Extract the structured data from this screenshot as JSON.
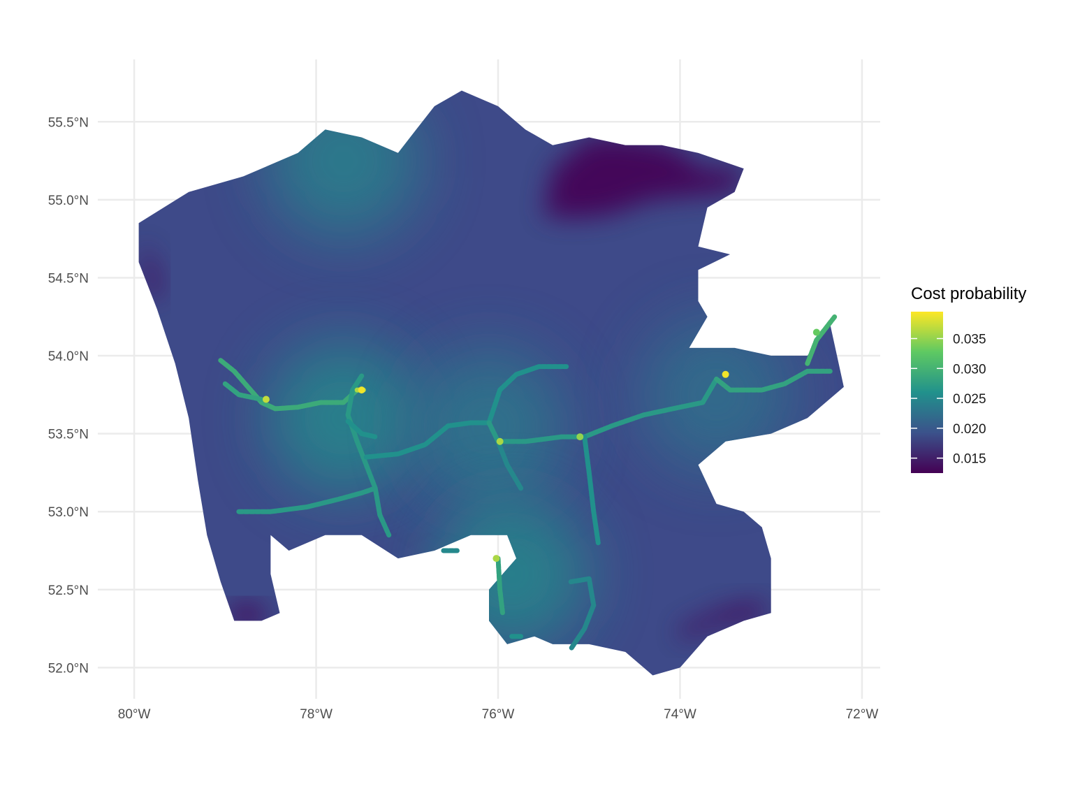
{
  "map": {
    "projection": "lon/lat equirectangular",
    "lon_range": [
      -80.4,
      -71.8
    ],
    "lat_range": [
      51.8,
      55.9
    ],
    "grid_lines": true,
    "x_ticks": [
      {
        "value": -80,
        "label": "80°W"
      },
      {
        "value": -78,
        "label": "78°W"
      },
      {
        "value": -76,
        "label": "76°W"
      },
      {
        "value": -74,
        "label": "74°W"
      },
      {
        "value": -72,
        "label": "72°W"
      }
    ],
    "y_ticks": [
      {
        "value": 55.5,
        "label": "55.5°N"
      },
      {
        "value": 55.0,
        "label": "55.0°N"
      },
      {
        "value": 54.5,
        "label": "54.5°N"
      },
      {
        "value": 54.0,
        "label": "54.0°N"
      },
      {
        "value": 53.5,
        "label": "53.5°N"
      },
      {
        "value": 53.0,
        "label": "53.0°N"
      },
      {
        "value": 52.5,
        "label": "52.5°N"
      },
      {
        "value": 52.0,
        "label": "52.0°N"
      }
    ],
    "fill_color_base": "#3e4a89",
    "gridline_color": "#ebebeb"
  },
  "legend": {
    "title": "Cost probability",
    "placement": "right",
    "range": [
      0.0125,
      0.0395
    ],
    "colormap": [
      "#440154",
      "#3b528b",
      "#21918c",
      "#5ec962",
      "#fde725"
    ],
    "ticks": [
      {
        "value": 0.035,
        "label": "0.035"
      },
      {
        "value": 0.03,
        "label": "0.030"
      },
      {
        "value": 0.025,
        "label": "0.025"
      },
      {
        "value": 0.02,
        "label": "0.020"
      },
      {
        "value": 0.015,
        "label": "0.015"
      }
    ]
  },
  "regions": {
    "outline": [
      [
        -79.95,
        54.85
      ],
      [
        -79.4,
        55.05
      ],
      [
        -78.8,
        55.15
      ],
      [
        -78.2,
        55.3
      ],
      [
        -77.9,
        55.45
      ],
      [
        -77.5,
        55.4
      ],
      [
        -77.1,
        55.3
      ],
      [
        -76.9,
        55.45
      ],
      [
        -76.7,
        55.6
      ],
      [
        -76.4,
        55.7
      ],
      [
        -76.0,
        55.6
      ],
      [
        -75.7,
        55.45
      ],
      [
        -75.4,
        55.35
      ],
      [
        -75.0,
        55.4
      ],
      [
        -74.6,
        55.35
      ],
      [
        -74.2,
        55.35
      ],
      [
        -73.8,
        55.3
      ],
      [
        -73.3,
        55.2
      ],
      [
        -73.4,
        55.05
      ],
      [
        -73.7,
        54.95
      ],
      [
        -73.8,
        54.7
      ],
      [
        -73.45,
        54.65
      ],
      [
        -73.8,
        54.55
      ],
      [
        -73.8,
        54.35
      ],
      [
        -73.7,
        54.25
      ],
      [
        -73.9,
        54.05
      ],
      [
        -73.4,
        54.05
      ],
      [
        -73.0,
        54.0
      ],
      [
        -72.6,
        54.0
      ],
      [
        -72.35,
        54.2
      ],
      [
        -72.2,
        53.8
      ],
      [
        -72.6,
        53.6
      ],
      [
        -73.0,
        53.5
      ],
      [
        -73.5,
        53.45
      ],
      [
        -73.8,
        53.3
      ],
      [
        -73.6,
        53.05
      ],
      [
        -73.3,
        53.0
      ],
      [
        -73.1,
        52.9
      ],
      [
        -73.0,
        52.7
      ],
      [
        -73.0,
        52.35
      ],
      [
        -73.3,
        52.3
      ],
      [
        -73.7,
        52.2
      ],
      [
        -74.0,
        52.0
      ],
      [
        -74.3,
        51.95
      ],
      [
        -74.6,
        52.1
      ],
      [
        -75.0,
        52.15
      ],
      [
        -75.4,
        52.15
      ],
      [
        -75.6,
        52.2
      ],
      [
        -75.9,
        52.15
      ],
      [
        -76.1,
        52.3
      ],
      [
        -76.1,
        52.5
      ],
      [
        -75.8,
        52.7
      ],
      [
        -75.9,
        52.85
      ],
      [
        -76.3,
        52.85
      ],
      [
        -76.7,
        52.75
      ],
      [
        -77.1,
        52.7
      ],
      [
        -77.5,
        52.85
      ],
      [
        -77.9,
        52.85
      ],
      [
        -78.3,
        52.75
      ],
      [
        -78.5,
        52.85
      ],
      [
        -78.5,
        52.6
      ],
      [
        -78.4,
        52.35
      ],
      [
        -78.6,
        52.3
      ],
      [
        -78.9,
        52.3
      ],
      [
        -79.05,
        52.55
      ],
      [
        -79.2,
        52.85
      ],
      [
        -79.3,
        53.2
      ],
      [
        -79.4,
        53.6
      ],
      [
        -79.55,
        53.95
      ],
      [
        -79.75,
        54.3
      ],
      [
        -79.95,
        54.6
      ]
    ],
    "dark_zones": [
      {
        "name": "northeast",
        "outline": [
          [
            -75.5,
            54.9
          ],
          [
            -75.4,
            55.2
          ],
          [
            -75.0,
            55.4
          ],
          [
            -74.6,
            55.4
          ],
          [
            -74.1,
            55.35
          ],
          [
            -73.75,
            55.2
          ],
          [
            -73.3,
            55.2
          ],
          [
            -73.4,
            55.05
          ],
          [
            -74.3,
            55.0
          ],
          [
            -74.8,
            54.9
          ],
          [
            -75.2,
            54.88
          ]
        ]
      },
      {
        "name": "northwest-coast",
        "outline": [
          [
            -79.9,
            54.75
          ],
          [
            -79.75,
            54.55
          ],
          [
            -79.7,
            54.35
          ],
          [
            -79.85,
            54.4
          ]
        ]
      },
      {
        "name": "southwest-tip",
        "outline": [
          [
            -78.95,
            52.4
          ],
          [
            -78.6,
            52.4
          ],
          [
            -78.55,
            52.28
          ],
          [
            -78.95,
            52.28
          ]
        ]
      },
      {
        "name": "southeast-strip",
        "outline": [
          [
            -74.0,
            52.25
          ],
          [
            -73.5,
            52.38
          ],
          [
            -73.05,
            52.42
          ],
          [
            -73.1,
            52.32
          ],
          [
            -73.6,
            52.28
          ],
          [
            -74.0,
            52.18
          ]
        ]
      }
    ],
    "hot_spots": [
      {
        "lon": -77.7,
        "lat": 53.6,
        "value": 0.026
      },
      {
        "lon": -76.1,
        "lat": 53.55,
        "value": 0.024
      },
      {
        "lon": -75.85,
        "lat": 52.6,
        "value": 0.026
      },
      {
        "lon": -77.7,
        "lat": 55.25,
        "value": 0.025
      },
      {
        "lon": -73.6,
        "lat": 53.75,
        "value": 0.023
      }
    ]
  },
  "chart_data": {
    "type": "map-hexbin",
    "color_variable": "Cost probability",
    "paths": [
      {
        "points": [
          [
            -79.05,
            53.97
          ],
          [
            -78.9,
            53.9
          ],
          [
            -78.75,
            53.8
          ],
          [
            -78.6,
            53.7
          ],
          [
            -78.45,
            53.66
          ],
          [
            -78.2,
            53.67
          ],
          [
            -77.95,
            53.7
          ],
          [
            -77.7,
            53.7
          ],
          [
            -77.55,
            53.78
          ]
        ],
        "value": 0.029
      },
      {
        "points": [
          [
            -79.0,
            53.82
          ],
          [
            -78.85,
            53.75
          ],
          [
            -78.6,
            53.72
          ]
        ],
        "value": 0.028
      },
      {
        "points": [
          [
            -77.5,
            53.87
          ],
          [
            -77.6,
            53.78
          ],
          [
            -77.65,
            53.62
          ],
          [
            -77.55,
            53.45
          ],
          [
            -77.45,
            53.3
          ],
          [
            -77.35,
            53.15
          ],
          [
            -77.3,
            52.98
          ],
          [
            -77.2,
            52.85
          ]
        ],
        "value": 0.027
      },
      {
        "points": [
          [
            -77.55,
            53.78
          ],
          [
            -77.48,
            53.78
          ]
        ],
        "value": 0.036
      },
      {
        "points": [
          [
            -77.65,
            53.58
          ],
          [
            -77.5,
            53.5
          ],
          [
            -77.35,
            53.48
          ]
        ],
        "value": 0.026
      },
      {
        "points": [
          [
            -78.85,
            53.0
          ],
          [
            -78.5,
            53.0
          ],
          [
            -78.1,
            53.03
          ],
          [
            -77.75,
            53.08
          ],
          [
            -77.5,
            53.12
          ],
          [
            -77.35,
            53.15
          ]
        ],
        "value": 0.027
      },
      {
        "points": [
          [
            -77.45,
            53.35
          ],
          [
            -77.1,
            53.37
          ],
          [
            -76.8,
            53.43
          ],
          [
            -76.55,
            53.55
          ],
          [
            -76.3,
            53.57
          ],
          [
            -76.1,
            53.57
          ]
        ],
        "value": 0.026
      },
      {
        "points": [
          [
            -76.1,
            53.57
          ],
          [
            -75.98,
            53.78
          ],
          [
            -75.8,
            53.88
          ],
          [
            -75.55,
            53.93
          ],
          [
            -75.25,
            53.93
          ]
        ],
        "value": 0.026
      },
      {
        "points": [
          [
            -76.1,
            53.57
          ],
          [
            -76.0,
            53.45
          ],
          [
            -75.7,
            53.45
          ],
          [
            -75.3,
            53.48
          ],
          [
            -75.05,
            53.48
          ],
          [
            -74.75,
            53.55
          ],
          [
            -74.4,
            53.62
          ],
          [
            -74.0,
            53.67
          ],
          [
            -73.75,
            53.7
          ],
          [
            -73.6,
            53.85
          ]
        ],
        "value": 0.027
      },
      {
        "points": [
          [
            -76.0,
            53.45
          ],
          [
            -75.9,
            53.3
          ],
          [
            -75.75,
            53.15
          ]
        ],
        "value": 0.025
      },
      {
        "points": [
          [
            -75.05,
            53.48
          ],
          [
            -75.0,
            53.25
          ],
          [
            -74.95,
            53.0
          ],
          [
            -74.9,
            52.8
          ]
        ],
        "value": 0.026
      },
      {
        "points": [
          [
            -73.6,
            53.85
          ],
          [
            -73.45,
            53.78
          ],
          [
            -73.1,
            53.78
          ],
          [
            -72.85,
            53.82
          ],
          [
            -72.6,
            53.9
          ],
          [
            -72.35,
            53.9
          ]
        ],
        "value": 0.028
      },
      {
        "points": [
          [
            -72.6,
            53.95
          ],
          [
            -72.5,
            54.1
          ],
          [
            -72.3,
            54.25
          ]
        ],
        "value": 0.03
      },
      {
        "points": [
          [
            -76.0,
            52.7
          ],
          [
            -75.98,
            52.5
          ],
          [
            -75.95,
            52.35
          ]
        ],
        "value": 0.028
      },
      {
        "points": [
          [
            -75.85,
            52.2
          ],
          [
            -75.75,
            52.2
          ]
        ],
        "value": 0.026
      },
      {
        "points": [
          [
            -75.2,
            52.55
          ],
          [
            -75.0,
            52.57
          ],
          [
            -74.95,
            52.4
          ],
          [
            -75.05,
            52.25
          ],
          [
            -75.2,
            52.12
          ]
        ],
        "value": 0.025
      },
      {
        "points": [
          [
            -76.6,
            52.75
          ],
          [
            -76.45,
            52.75
          ]
        ],
        "value": 0.025
      }
    ],
    "peaks": [
      {
        "lon": -77.5,
        "lat": 53.78,
        "value": 0.039
      },
      {
        "lon": -78.55,
        "lat": 53.72,
        "value": 0.037
      },
      {
        "lon": -75.98,
        "lat": 53.45,
        "value": 0.036
      },
      {
        "lon": -73.5,
        "lat": 53.88,
        "value": 0.039
      },
      {
        "lon": -75.1,
        "lat": 53.48,
        "value": 0.035
      },
      {
        "lon": -76.02,
        "lat": 52.7,
        "value": 0.036
      },
      {
        "lon": -72.5,
        "lat": 54.15,
        "value": 0.033
      }
    ]
  }
}
